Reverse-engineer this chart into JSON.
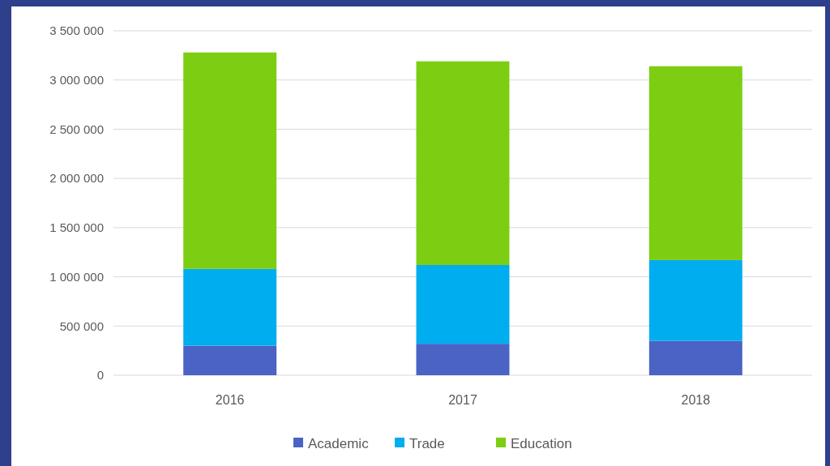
{
  "chart_data": {
    "type": "bar",
    "stacked": true,
    "categories": [
      "2016",
      "2017",
      "2018"
    ],
    "series": [
      {
        "name": "Academic",
        "color": "#4a63c4",
        "values": [
          300000,
          320000,
          350000
        ]
      },
      {
        "name": "Trade",
        "color": "#00aeef",
        "values": [
          780000,
          800000,
          820000
        ]
      },
      {
        "name": "Education",
        "color": "#7dce13",
        "values": [
          2200000,
          2070000,
          1970000
        ]
      }
    ],
    "ylim": [
      0,
      3500000
    ],
    "yticks": [
      {
        "value": 0,
        "label": "0"
      },
      {
        "value": 500000,
        "label": "500 000"
      },
      {
        "value": 1000000,
        "label": "1 000 000"
      },
      {
        "value": 1500000,
        "label": "1 500 000"
      },
      {
        "value": 2000000,
        "label": "2 000 000"
      },
      {
        "value": 2500000,
        "label": "2 500 000"
      },
      {
        "value": 3000000,
        "label": "3 000 000"
      },
      {
        "value": 3500000,
        "label": "3 500 000"
      }
    ],
    "grid": "y",
    "legend": "bottom"
  }
}
